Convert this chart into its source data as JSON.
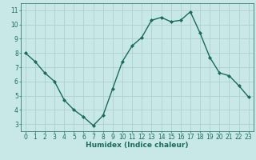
{
  "title": "",
  "xlabel": "Humidex (Indice chaleur)",
  "ylabel": "",
  "x": [
    0,
    1,
    2,
    3,
    4,
    5,
    6,
    7,
    8,
    9,
    10,
    11,
    12,
    13,
    14,
    15,
    16,
    17,
    18,
    19,
    20,
    21,
    22,
    23
  ],
  "y": [
    8.0,
    7.4,
    6.6,
    6.0,
    4.7,
    4.0,
    3.5,
    2.9,
    3.6,
    5.5,
    7.4,
    8.5,
    9.1,
    10.3,
    10.5,
    10.2,
    10.3,
    10.9,
    9.4,
    7.7,
    6.6,
    6.4,
    5.7,
    4.9
  ],
  "line_color": "#1a6b5a",
  "marker": "D",
  "marker_size": 2.0,
  "bg_color": "#c8e8e8",
  "grid_color": "#b0d0d0",
  "tick_color": "#1a6b5a",
  "label_color": "#1a6b5a",
  "ylim": [
    2.5,
    11.5
  ],
  "yticks": [
    3,
    4,
    5,
    6,
    7,
    8,
    9,
    10,
    11
  ],
  "xlim": [
    -0.5,
    23.5
  ],
  "xticks": [
    0,
    1,
    2,
    3,
    4,
    5,
    6,
    7,
    8,
    9,
    10,
    11,
    12,
    13,
    14,
    15,
    16,
    17,
    18,
    19,
    20,
    21,
    22,
    23
  ],
  "tick_fontsize": 5.5,
  "xlabel_fontsize": 6.5,
  "line_width": 1.0
}
